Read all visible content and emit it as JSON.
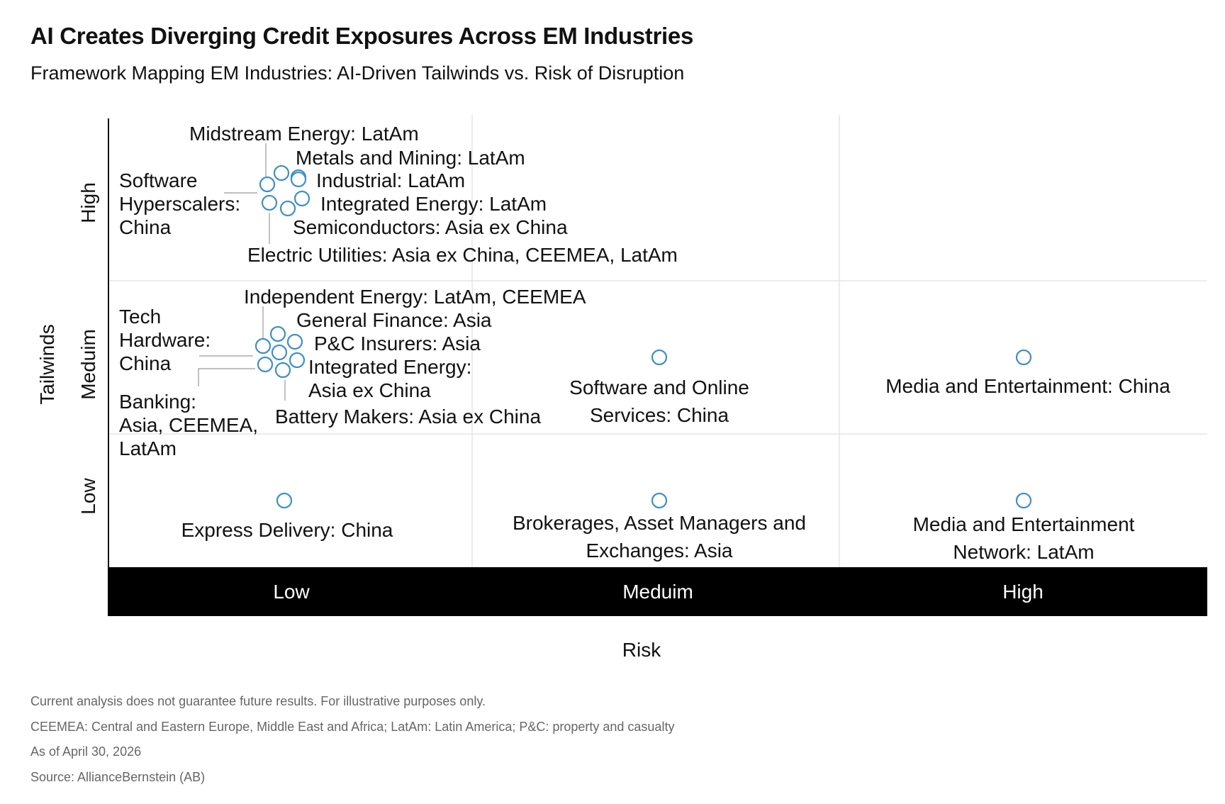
{
  "header": {
    "title": "AI Creates Diverging Credit Exposures Across EM Industries",
    "subtitle": "Framework Mapping EM Industries: AI-Driven Tailwinds vs. Risk of Disruption"
  },
  "chart_data": {
    "type": "scatter",
    "title": "AI Creates Diverging Credit Exposures Across EM Industries",
    "subtitle": "Framework Mapping EM Industries: AI-Driven Tailwinds vs. Risk of Disruption",
    "xlabel": "Risk",
    "ylabel": "Tailwinds",
    "x_categories": [
      "Low",
      "Meduim",
      "High"
    ],
    "y_categories": [
      "Low",
      "Meduim",
      "High"
    ],
    "grid": true,
    "marker_color": "#3d8fc6",
    "axis_bar_color": "#000000",
    "points": [
      {
        "x": "Low",
        "y": "High",
        "label": "Midstream Energy: LatAm"
      },
      {
        "x": "Low",
        "y": "High",
        "label": "Metals and Mining: LatAm"
      },
      {
        "x": "Low",
        "y": "High",
        "label": "Industrial: LatAm"
      },
      {
        "x": "Low",
        "y": "High",
        "label": "Integrated Energy: LatAm"
      },
      {
        "x": "Low",
        "y": "High",
        "label": "Semiconductors: Asia ex China"
      },
      {
        "x": "Low",
        "y": "High",
        "label": "Electric Utilities: Asia ex China, CEEMEA, LatAm"
      },
      {
        "x": "Low",
        "y": "High",
        "label": "Software Hyperscalers: China"
      },
      {
        "x": "Low",
        "y": "Meduim",
        "label": "Independent Energy: LatAm, CEEMEA"
      },
      {
        "x": "Low",
        "y": "Meduim",
        "label": "General Finance: Asia"
      },
      {
        "x": "Low",
        "y": "Meduim",
        "label": "P&C Insurers: Asia"
      },
      {
        "x": "Low",
        "y": "Meduim",
        "label": "Integrated Energy: Asia ex China"
      },
      {
        "x": "Low",
        "y": "Meduim",
        "label": "Battery Makers: Asia ex China"
      },
      {
        "x": "Low",
        "y": "Meduim",
        "label": "Tech Hardware: China"
      },
      {
        "x": "Low",
        "y": "Meduim",
        "label": "Banking: Asia, CEEMEA, LatAm"
      },
      {
        "x": "Meduim",
        "y": "Meduim",
        "label": "Software and Online Services: China"
      },
      {
        "x": "High",
        "y": "Meduim",
        "label": "Media and Entertainment: China"
      },
      {
        "x": "Low",
        "y": "Low",
        "label": "Express Delivery: China"
      },
      {
        "x": "Meduim",
        "y": "Low",
        "label": "Brokerages, Asset Managers and Exchanges: Asia"
      },
      {
        "x": "High",
        "y": "Low",
        "label": "Media and Entertainment Network: LatAm"
      }
    ]
  },
  "footnotes": [
    "Current analysis does not guarantee future results. For illustrative purposes only.",
    "CEEMEA: Central and Eastern Europe, Middle East and Africa; LatAm: Latin America; P&C: property and casualty",
    "As of April 30, 2026",
    "Source: AllianceBernstein (AB)"
  ]
}
